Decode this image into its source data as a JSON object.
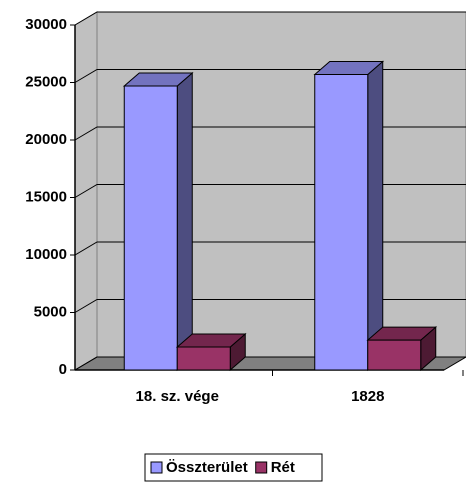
{
  "chart_data": {
    "type": "bar3d",
    "categories": [
      "18. sz. vége",
      "1828"
    ],
    "series": [
      {
        "name": "Összterület",
        "color": "#9999ff",
        "values": [
          24700,
          25700
        ]
      },
      {
        "name": "Rét",
        "color": "#993366",
        "values": [
          2000,
          2600
        ]
      }
    ],
    "ylim": [
      0,
      30000
    ],
    "yticks": [
      0,
      5000,
      10000,
      15000,
      20000,
      25000,
      30000
    ],
    "grid": true,
    "legend": "bottom"
  }
}
